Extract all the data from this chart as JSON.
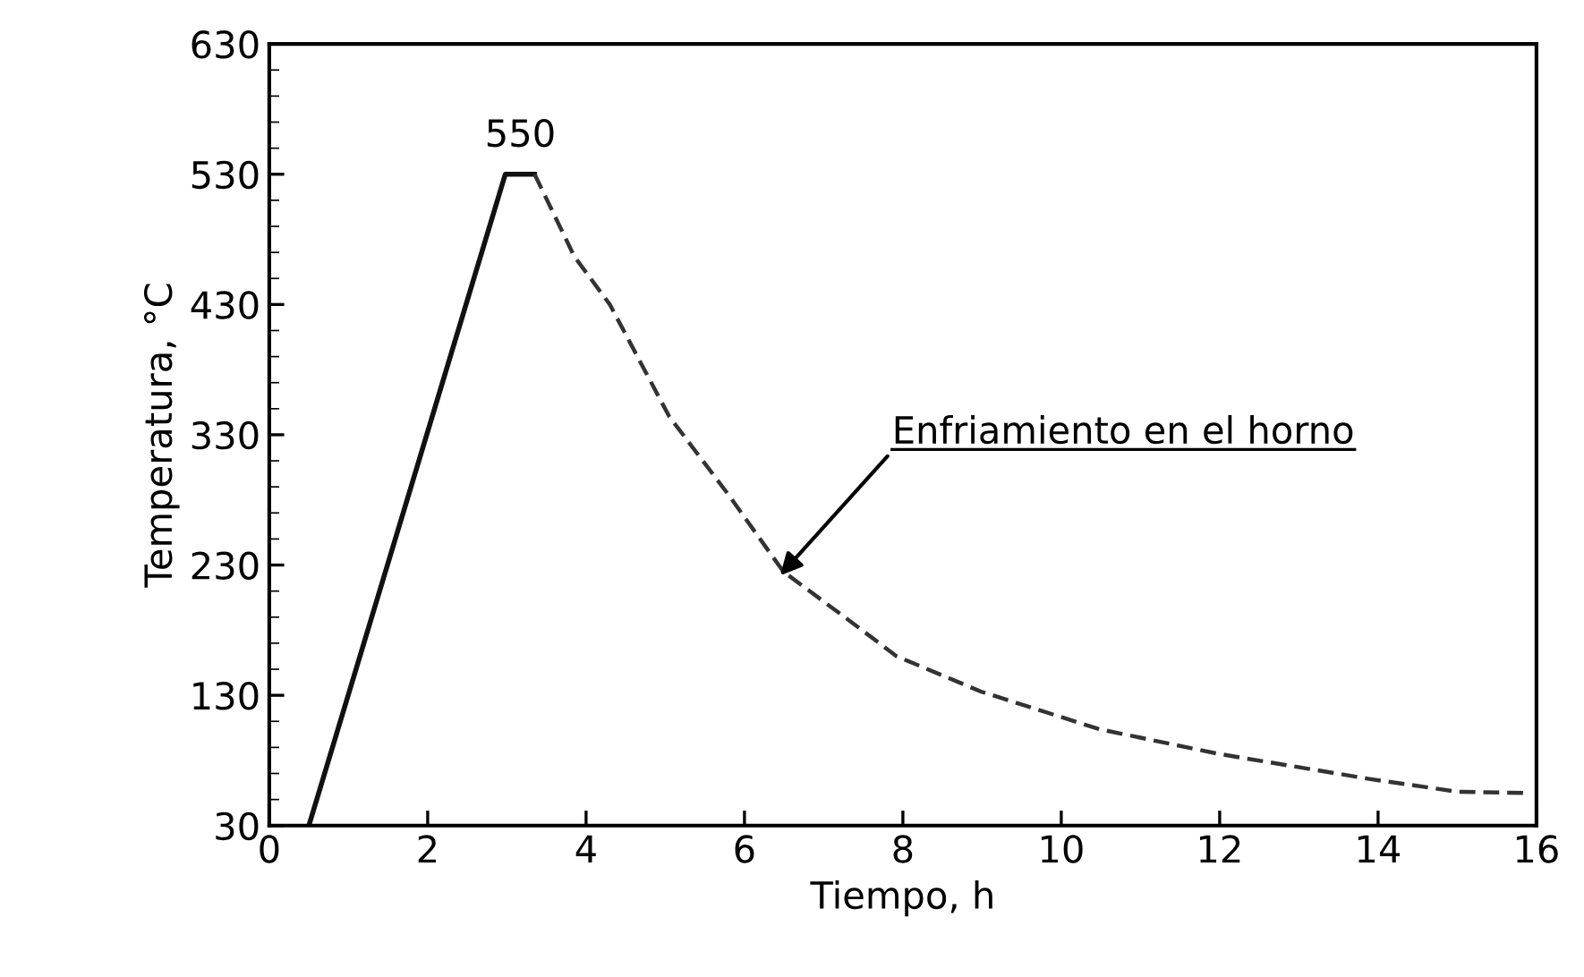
{
  "chart_data": {
    "type": "line",
    "xlabel": "Tiempo, h",
    "ylabel": "Temperatura, °C",
    "xlim": [
      0,
      16
    ],
    "ylim": [
      30,
      630
    ],
    "xticks": [
      0,
      2,
      4,
      6,
      8,
      10,
      12,
      14,
      16
    ],
    "yticks": [
      30,
      130,
      230,
      330,
      430,
      530,
      630
    ],
    "grid": false,
    "legend": false,
    "marker": "none",
    "series": [
      {
        "color": "#111111",
        "line_style": "solid",
        "x": [
          0.5,
          2.98,
          3.35
        ],
        "values": [
          30,
          530,
          530
        ]
      },
      {
        "color": "#333333",
        "line_style": "dashed",
        "x": [
          3.35,
          3.85,
          4.3,
          5.05,
          5.81,
          6.49,
          7.31,
          7.92,
          8.98,
          10.48,
          11.99,
          13.87,
          15.0,
          15.9
        ],
        "values": [
          530,
          467,
          430,
          344,
          283,
          225,
          188,
          160,
          133,
          104,
          85,
          66,
          56,
          55
        ]
      }
    ],
    "annotations": [
      {
        "text": "550",
        "x": 3.17,
        "y": 530
      },
      {
        "text": "Enfriamiento en el horno",
        "x": 6.45,
        "y": 222
      }
    ]
  }
}
